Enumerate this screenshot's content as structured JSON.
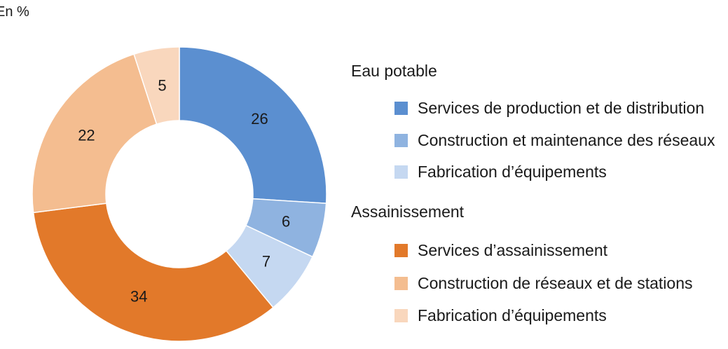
{
  "unit_label": "En %",
  "chart_data": {
    "type": "pie",
    "donut": true,
    "unit": "En %",
    "groups": [
      {
        "name": "Eau potable",
        "items": [
          {
            "label": "Services de production et de distribution",
            "value": 26,
            "color": "#5b8fd0"
          },
          {
            "label": "Construction et maintenance des réseaux",
            "value": 6,
            "color": "#8fb3e0"
          },
          {
            "label": "Fabrication d’équipements",
            "value": 7,
            "color": "#c5d8f1"
          }
        ]
      },
      {
        "name": "Assainissement",
        "items": [
          {
            "label": "Services d’assainissement",
            "value": 34,
            "color": "#e2792a"
          },
          {
            "label": "Construction de réseaux et de stations",
            "value": 22,
            "color": "#f4bd90"
          },
          {
            "label": "Fabrication d’équipements",
            "value": 5,
            "color": "#f9d7bd"
          }
        ]
      }
    ]
  }
}
